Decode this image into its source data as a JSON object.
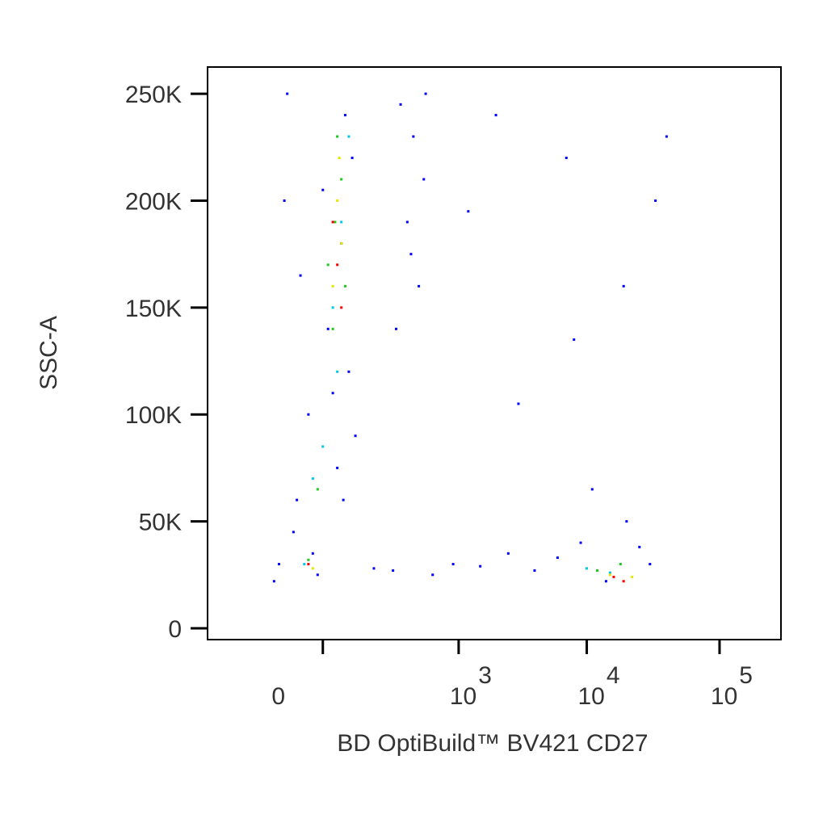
{
  "chart_data": {
    "type": "scatter",
    "x_label": "BD OptiBuild™ BV421 CD27",
    "y_label": "SSC-A",
    "xscale": "biexponential",
    "xlim": [
      -670,
      289000
    ],
    "ylim": [
      -5300,
      262500
    ],
    "xticks": [
      {
        "value": 0,
        "label": "0"
      },
      {
        "value": 1000,
        "label": "10",
        "exponent": "3"
      },
      {
        "value": 10000,
        "label": "10",
        "exponent": "4"
      },
      {
        "value": 100000,
        "label": "10",
        "exponent": "5"
      }
    ],
    "yticks": [
      {
        "value": 0,
        "label": "0"
      },
      {
        "value": 50000,
        "label": "50K"
      },
      {
        "value": 100000,
        "label": "100K"
      },
      {
        "value": 150000,
        "label": "150K"
      },
      {
        "value": 200000,
        "label": "200K"
      },
      {
        "value": 250000,
        "label": "250K"
      }
    ],
    "series": [
      {
        "color": "#0000ff",
        "x": [
          -120,
          -60,
          -30,
          10,
          40,
          70,
          -90,
          -20,
          30,
          60,
          -140,
          -50,
          0,
          50,
          80,
          -70,
          20,
          -100,
          45,
          -10,
          300,
          400,
          500,
          350,
          450,
          270,
          520,
          380,
          150,
          250,
          600,
          900,
          1500,
          2500,
          4000,
          6000,
          9000,
          14000,
          20000,
          30000,
          11000,
          25000,
          3000,
          8000,
          1200,
          19000,
          33000,
          40000,
          2000,
          7000
        ],
        "values": [
          30000,
          60000,
          100000,
          140000,
          180000,
          220000,
          250000,
          35000,
          75000,
          120000,
          22000,
          165000,
          205000,
          240000,
          90000,
          45000,
          110000,
          200000,
          60000,
          25000,
          245000,
          230000,
          210000,
          190000,
          160000,
          140000,
          250000,
          175000,
          28000,
          27000,
          25000,
          30000,
          29000,
          35000,
          27000,
          33000,
          40000,
          22000,
          50000,
          30000,
          65000,
          38000,
          105000,
          135000,
          195000,
          160000,
          200000,
          230000,
          240000,
          220000
        ]
      },
      {
        "color": "#00c8e6",
        "x": [
          -40,
          20,
          60,
          -20,
          40,
          10000,
          15000,
          30,
          0
        ],
        "values": [
          30000,
          150000,
          230000,
          70000,
          190000,
          28000,
          26000,
          120000,
          85000
        ]
      },
      {
        "color": "#1ec81e",
        "x": [
          -30,
          10,
          40,
          20,
          30,
          -10,
          12000,
          18000,
          25,
          50
        ],
        "values": [
          32000,
          170000,
          210000,
          140000,
          230000,
          65000,
          27000,
          30000,
          190000,
          160000
        ]
      },
      {
        "color": "#e6e600",
        "x": [
          -20,
          20,
          30,
          40,
          15000,
          22000,
          35
        ],
        "values": [
          28000,
          160000,
          200000,
          180000,
          25000,
          24000,
          220000
        ]
      },
      {
        "color": "#ff0000",
        "x": [
          30,
          40,
          20,
          16000,
          19000,
          -30
        ],
        "values": [
          170000,
          150000,
          190000,
          24000,
          22000,
          30000
        ]
      }
    ]
  }
}
